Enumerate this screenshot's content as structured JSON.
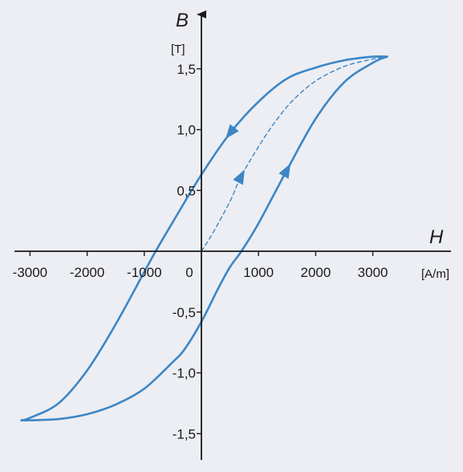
{
  "chart_data": {
    "type": "line",
    "title": "",
    "xlabel": "H",
    "xunit": "[A/m]",
    "ylabel": "B",
    "yunit": "[T]",
    "xlim": [
      -3200,
      4000
    ],
    "ylim": [
      -1.75,
      1.9
    ],
    "grid": false,
    "colors": {
      "curve": "#3d86c6",
      "axis": "#1a1a1a",
      "background": "#eceef3"
    },
    "x_ticks": [
      {
        "value": -3000,
        "label": "-3000"
      },
      {
        "value": -2000,
        "label": "-2000"
      },
      {
        "value": -1000,
        "label": "-1000"
      },
      {
        "value": 0,
        "label": "0"
      },
      {
        "value": 1000,
        "label": "1000"
      },
      {
        "value": 2000,
        "label": "2000"
      },
      {
        "value": 3000,
        "label": "3000"
      }
    ],
    "y_ticks": [
      {
        "value": 1.5,
        "label": "1,5"
      },
      {
        "value": 1.0,
        "label": "1,0"
      },
      {
        "value": 0.5,
        "label": "0,5"
      },
      {
        "value": -0.5,
        "label": "-0,5"
      },
      {
        "value": -1.0,
        "label": "-1,0"
      },
      {
        "value": -1.5,
        "label": "-1,5"
      }
    ],
    "series": [
      {
        "style": "solid",
        "x": [
          3250,
          3000,
          2500,
          2000,
          1500,
          1000,
          500,
          0,
          -500,
          -800,
          -1000,
          -1500,
          -2000,
          -2500,
          -3000,
          -3150
        ],
        "y": [
          1.6,
          1.6,
          1.57,
          1.51,
          1.42,
          1.23,
          0.97,
          0.63,
          0.24,
          0.0,
          -0.17,
          -0.6,
          -0.98,
          -1.25,
          -1.37,
          -1.39
        ]
      },
      {
        "style": "solid",
        "x": [
          -3150,
          -3000,
          -2500,
          -2000,
          -1500,
          -1000,
          -500,
          -300,
          0,
          300,
          500,
          700,
          1000,
          1500,
          2000,
          2500,
          3000,
          3250
        ],
        "y": [
          -1.39,
          -1.39,
          -1.38,
          -1.34,
          -1.26,
          -1.13,
          -0.91,
          -0.81,
          -0.58,
          -0.3,
          -0.13,
          0.0,
          0.23,
          0.67,
          1.09,
          1.39,
          1.55,
          1.6
        ]
      },
      {
        "style": "dashed",
        "x": [
          0,
          200,
          500,
          700,
          1000,
          1300,
          1600,
          2000,
          2500,
          3000,
          3250
        ],
        "y": [
          0.0,
          0.15,
          0.41,
          0.62,
          0.86,
          1.07,
          1.24,
          1.4,
          1.52,
          1.58,
          1.6
        ]
      }
    ],
    "arrows": [
      {
        "series": 0,
        "x": 500,
        "y": 0.97
      },
      {
        "series": 1,
        "x": 1500,
        "y": 0.67
      },
      {
        "series": 2,
        "x": 700,
        "y": 0.62
      }
    ]
  }
}
